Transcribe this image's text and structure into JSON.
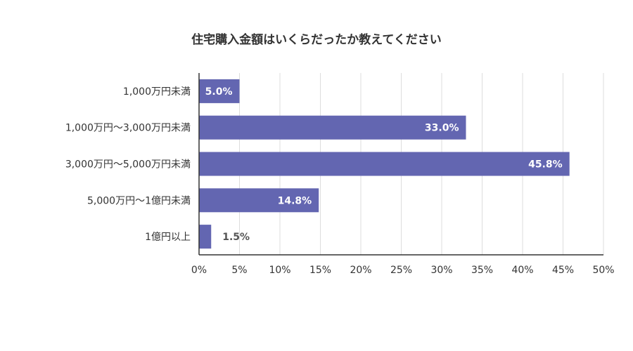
{
  "chart_data": {
    "type": "bar",
    "orientation": "horizontal",
    "title": "住宅購入金額はいくらだったか教えてください",
    "categories": [
      "1,000万円未満",
      "1,000万円～3,000万円未満",
      "3,000万円～5,000万円未満",
      "5,000万円～1億円未満",
      "1億円以上"
    ],
    "values": [
      5.0,
      33.0,
      45.8,
      14.8,
      1.5
    ],
    "value_labels": [
      "5.0%",
      "33.0%",
      "45.8%",
      "14.8%",
      "1.5%"
    ],
    "xlim": [
      0,
      50
    ],
    "ticks": [
      0,
      5,
      10,
      15,
      20,
      25,
      30,
      35,
      40,
      45,
      50
    ],
    "tick_labels": [
      "0%",
      "5%",
      "10%",
      "15%",
      "20%",
      "25%",
      "30%",
      "35%",
      "40%",
      "45%",
      "50%"
    ],
    "grid": true,
    "bar_color": "#6366b1",
    "label_inside_color": "#ffffff",
    "label_outside_color": "#555555"
  }
}
